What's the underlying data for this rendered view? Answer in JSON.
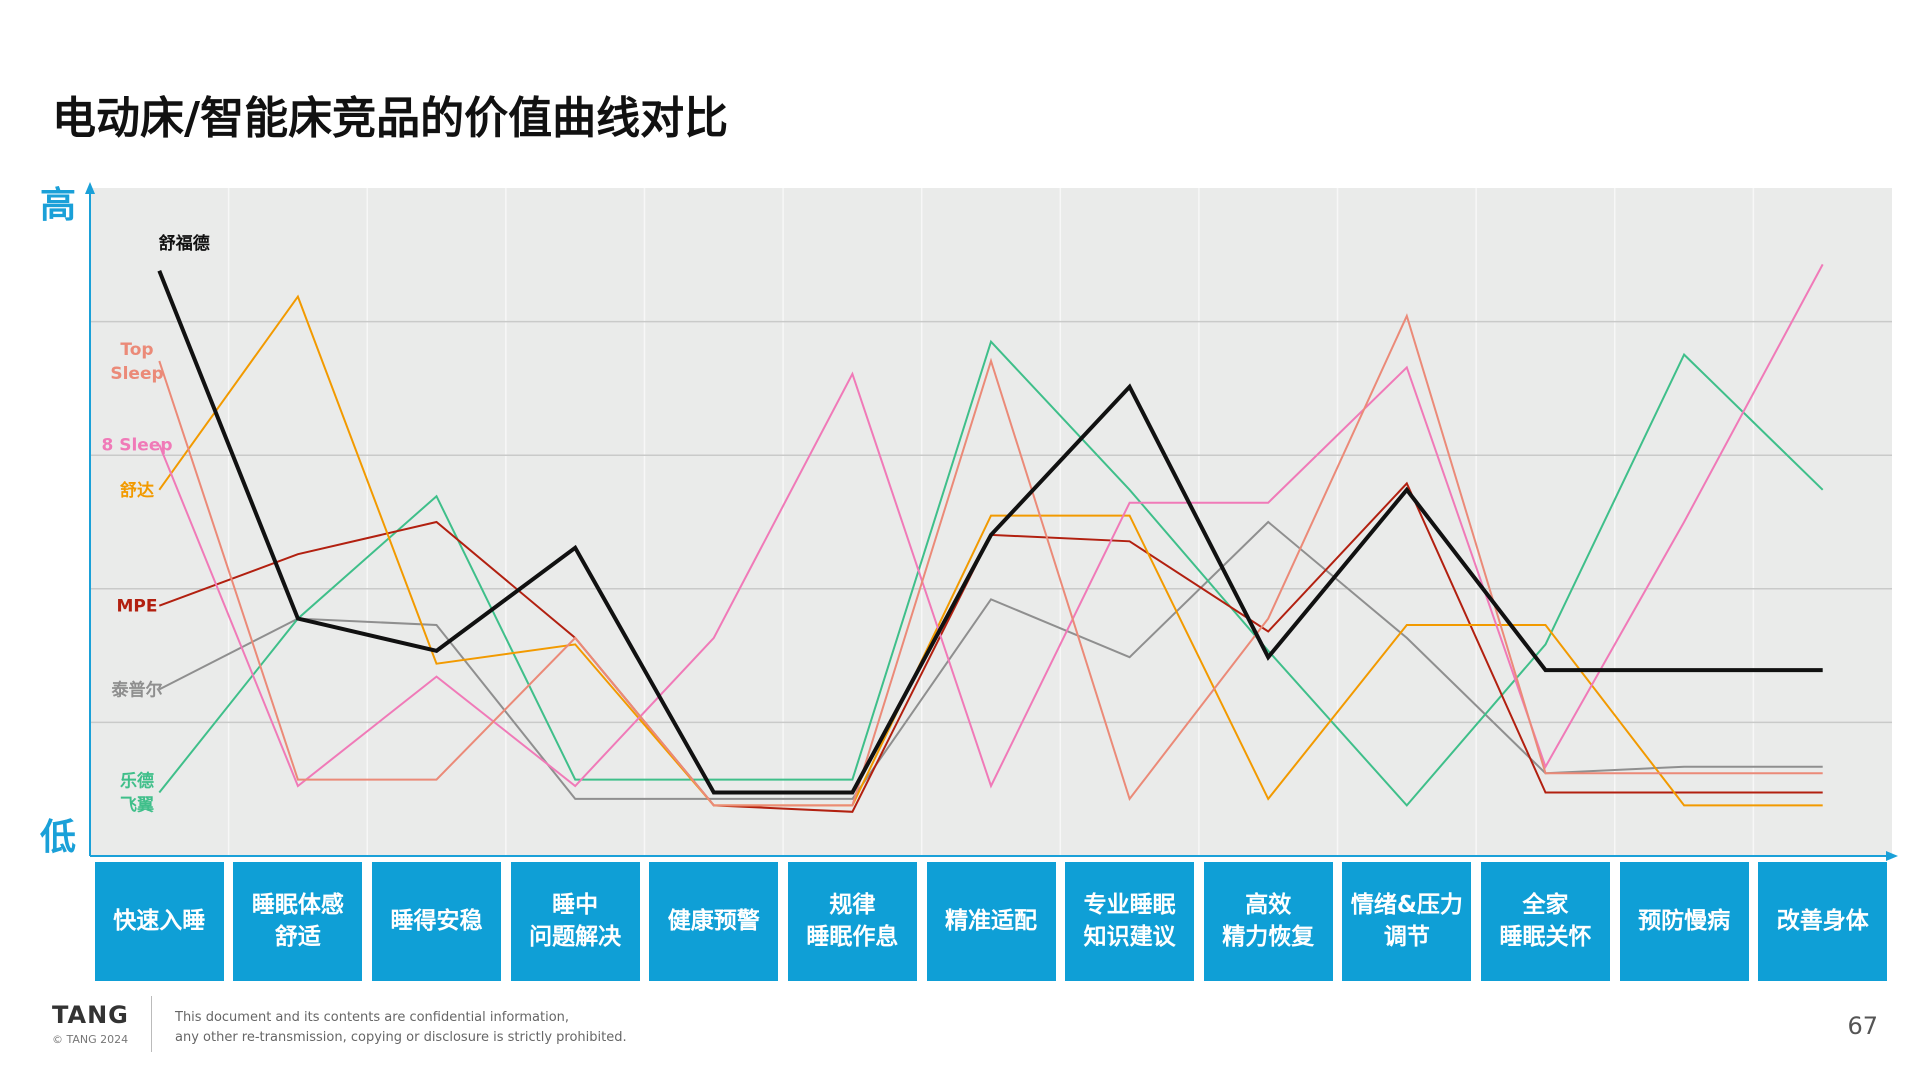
{
  "title": "电动床/智能床竞品的价值曲线对比",
  "axis": {
    "high": "高",
    "low": "低"
  },
  "chart_data": {
    "type": "line",
    "title": "电动床/智能床竞品的价值曲线对比",
    "xlabel": "",
    "ylabel": "",
    "ylim": [
      0,
      100
    ],
    "grid": true,
    "legend": "left",
    "categories": [
      "快速入睡",
      "睡眠体感\n舒适",
      "睡得安稳",
      "睡中\n问题解决",
      "健康预警",
      "规律\n睡眠作息",
      "精准适配",
      "专业睡眠\n知识建议",
      "高效\n精力恢复",
      "情绪&压力\n调节",
      "全家\n睡眠关怀",
      "预防慢病",
      "改善身体"
    ],
    "series": [
      {
        "name": "泰普尔",
        "color": "#8f8f8f",
        "width": 2,
        "values": [
          24,
          35,
          34,
          7,
          7,
          7,
          38,
          29,
          50,
          32,
          11,
          12,
          12
        ]
      },
      {
        "name": "乐德\n飞翼",
        "color": "#3fbf8a",
        "width": 2,
        "values": [
          8,
          35,
          54,
          10,
          10,
          10,
          78,
          55,
          30,
          6,
          31,
          76,
          55
        ]
      },
      {
        "name": "MPE",
        "color": "#b22010",
        "width": 2,
        "values": [
          37,
          45,
          50,
          32,
          6,
          5,
          48,
          47,
          33,
          56,
          8,
          8,
          8
        ]
      },
      {
        "name": "舒达",
        "color": "#f29a00",
        "width": 2,
        "values": [
          55,
          85,
          28,
          31,
          6,
          6,
          51,
          51,
          7,
          34,
          34,
          6,
          6
        ]
      },
      {
        "name": "8 Sleep",
        "color": "#f07ab8",
        "width": 2,
        "values": [
          62,
          9,
          26,
          9,
          32,
          73,
          9,
          53,
          53,
          74,
          12,
          50,
          90
        ]
      },
      {
        "name": "Top\nSleep",
        "color": "#eb8a78",
        "width": 2,
        "values": [
          75,
          10,
          10,
          32,
          6,
          6,
          75,
          7,
          35,
          82,
          11,
          11,
          11
        ]
      },
      {
        "name": "舒福德",
        "color": "#111111",
        "width": 4,
        "values": [
          89,
          35,
          30,
          46,
          8,
          8,
          48,
          71,
          29,
          55,
          27,
          27,
          27
        ]
      }
    ]
  },
  "footer": {
    "logo": "TANG",
    "copyright": "© TANG 2024",
    "note_line1": "This document and its contents are confidential information,",
    "note_line2": "any other re-transmission, copying or disclosure is strictly prohibited.",
    "page": "67"
  }
}
